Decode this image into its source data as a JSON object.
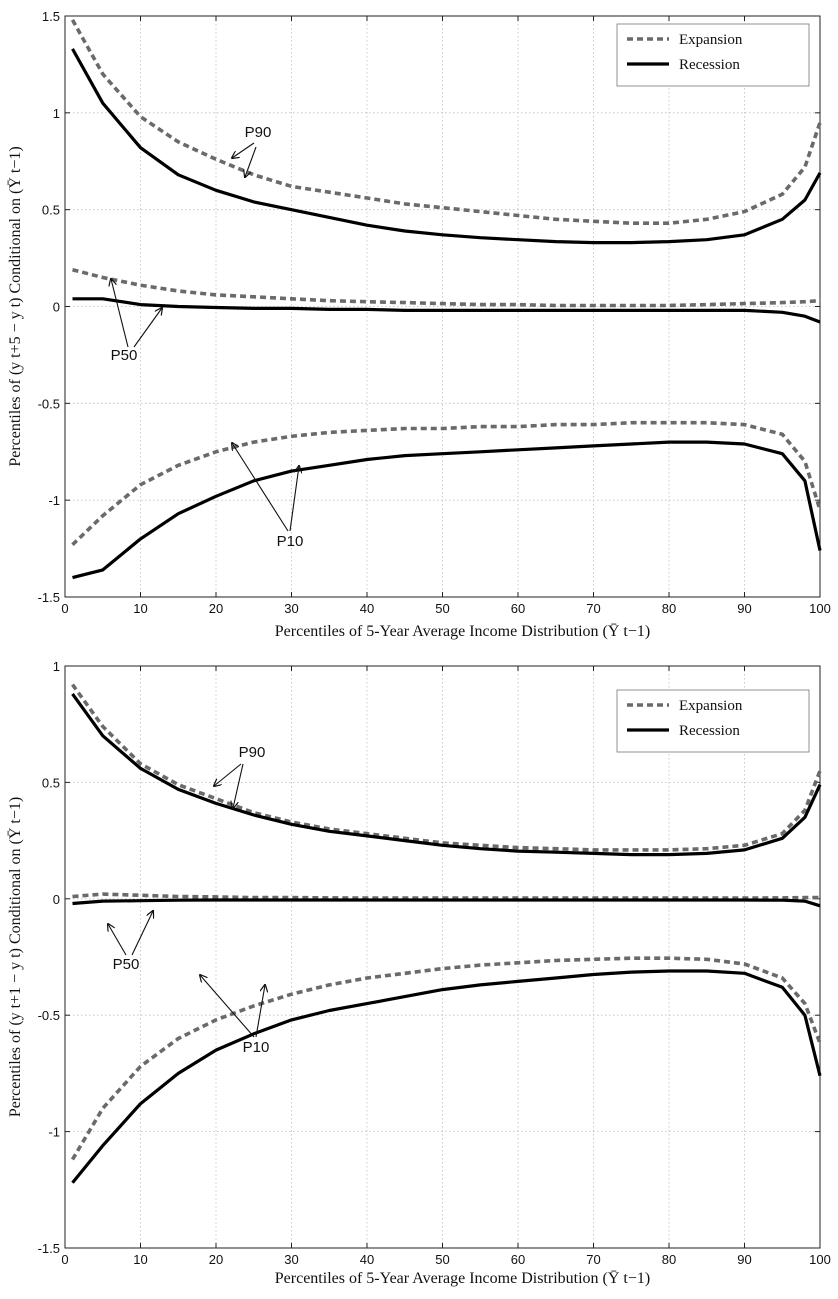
{
  "chart_data": [
    {
      "type": "line",
      "xlabel": "Percentiles of 5-Year Average Income Distribution (Ȳ t−1)",
      "ylabel": "Percentiles of (y t+5 − y t) Conditional on (Ȳ t−1)",
      "xlim": [
        0,
        100
      ],
      "ylim": [
        -1.5,
        1.5
      ],
      "x_ticks": [
        "0",
        "10",
        "20",
        "30",
        "40",
        "50",
        "60",
        "70",
        "80",
        "90",
        "100"
      ],
      "y_ticks": [
        "-1.5",
        "-1",
        "-0.5",
        "0",
        "0.5",
        "1",
        "1.5"
      ],
      "grid": true,
      "legend_position": "top-right",
      "legend": [
        "Expansion",
        "Recession"
      ],
      "x": [
        1,
        5,
        10,
        15,
        20,
        25,
        30,
        35,
        40,
        45,
        50,
        55,
        60,
        65,
        70,
        75,
        80,
        85,
        90,
        95,
        98,
        100
      ],
      "series": [
        {
          "name": "Expansion",
          "percentile": "P90",
          "style": "dashed",
          "values": [
            1.48,
            1.2,
            0.98,
            0.85,
            0.76,
            0.68,
            0.62,
            0.59,
            0.56,
            0.53,
            0.51,
            0.49,
            0.47,
            0.45,
            0.44,
            0.43,
            0.43,
            0.45,
            0.49,
            0.58,
            0.72,
            0.95
          ]
        },
        {
          "name": "Recession",
          "percentile": "P90",
          "style": "solid",
          "values": [
            1.33,
            1.05,
            0.82,
            0.68,
            0.6,
            0.54,
            0.5,
            0.46,
            0.42,
            0.39,
            0.37,
            0.355,
            0.345,
            0.335,
            0.33,
            0.33,
            0.335,
            0.345,
            0.37,
            0.45,
            0.55,
            0.69
          ]
        },
        {
          "name": "Expansion",
          "percentile": "P50",
          "style": "dashed",
          "values": [
            0.19,
            0.15,
            0.11,
            0.08,
            0.06,
            0.05,
            0.04,
            0.03,
            0.025,
            0.02,
            0.015,
            0.01,
            0.01,
            0.005,
            0.005,
            0.005,
            0.005,
            0.01,
            0.015,
            0.02,
            0.025,
            0.03
          ]
        },
        {
          "name": "Recession",
          "percentile": "P50",
          "style": "solid",
          "values": [
            0.04,
            0.04,
            0.01,
            0.0,
            -0.005,
            -0.01,
            -0.01,
            -0.015,
            -0.015,
            -0.02,
            -0.02,
            -0.02,
            -0.02,
            -0.02,
            -0.02,
            -0.02,
            -0.02,
            -0.02,
            -0.02,
            -0.03,
            -0.05,
            -0.08
          ]
        },
        {
          "name": "Expansion",
          "percentile": "P10",
          "style": "dashed",
          "values": [
            -1.23,
            -1.08,
            -0.92,
            -0.82,
            -0.75,
            -0.7,
            -0.67,
            -0.65,
            -0.64,
            -0.63,
            -0.63,
            -0.62,
            -0.62,
            -0.61,
            -0.61,
            -0.6,
            -0.6,
            -0.6,
            -0.61,
            -0.66,
            -0.8,
            -1.05
          ]
        },
        {
          "name": "Recession",
          "percentile": "P10",
          "style": "solid",
          "values": [
            -1.4,
            -1.36,
            -1.2,
            -1.07,
            -0.98,
            -0.9,
            -0.85,
            -0.82,
            -0.79,
            -0.77,
            -0.76,
            -0.75,
            -0.74,
            -0.73,
            -0.72,
            -0.71,
            -0.7,
            -0.7,
            -0.71,
            -0.76,
            -0.9,
            -1.26
          ]
        }
      ],
      "annotations": [
        "P90",
        "P50",
        "P10"
      ]
    },
    {
      "type": "line",
      "xlabel": "Percentiles of 5-Year Average Income Distribution (Ȳ t−1)",
      "ylabel": "Percentiles of (y t+1 − y t) Conditional on (Ȳ t−1)",
      "xlim": [
        0,
        100
      ],
      "ylim": [
        -1.5,
        1
      ],
      "x_ticks": [
        "0",
        "10",
        "20",
        "30",
        "40",
        "50",
        "60",
        "70",
        "80",
        "90",
        "100"
      ],
      "y_ticks": [
        "-1.5",
        "-1",
        "-0.5",
        "0",
        "0.5",
        "1"
      ],
      "grid": true,
      "legend_position": "top-right",
      "legend": [
        "Expansion",
        "Recession"
      ],
      "x": [
        1,
        5,
        10,
        15,
        20,
        25,
        30,
        35,
        40,
        45,
        50,
        55,
        60,
        65,
        70,
        75,
        80,
        85,
        90,
        95,
        98,
        100
      ],
      "series": [
        {
          "name": "Expansion",
          "percentile": "P90",
          "style": "dashed",
          "values": [
            0.92,
            0.74,
            0.58,
            0.49,
            0.43,
            0.37,
            0.33,
            0.3,
            0.28,
            0.26,
            0.24,
            0.23,
            0.22,
            0.215,
            0.21,
            0.21,
            0.21,
            0.215,
            0.23,
            0.28,
            0.38,
            0.55
          ]
        },
        {
          "name": "Recession",
          "percentile": "P90",
          "style": "solid",
          "values": [
            0.88,
            0.7,
            0.56,
            0.47,
            0.41,
            0.36,
            0.32,
            0.29,
            0.27,
            0.25,
            0.23,
            0.215,
            0.205,
            0.2,
            0.195,
            0.19,
            0.19,
            0.195,
            0.21,
            0.26,
            0.35,
            0.49
          ]
        },
        {
          "name": "Expansion",
          "percentile": "P50",
          "style": "dashed",
          "values": [
            0.01,
            0.02,
            0.015,
            0.01,
            0.008,
            0.005,
            0.005,
            0.004,
            0.003,
            0.003,
            0.003,
            0.003,
            0.003,
            0.003,
            0.003,
            0.003,
            0.003,
            0.003,
            0.003,
            0.004,
            0.005,
            0.005
          ]
        },
        {
          "name": "Recession",
          "percentile": "P50",
          "style": "solid",
          "values": [
            -0.02,
            -0.01,
            -0.008,
            -0.006,
            -0.005,
            -0.005,
            -0.005,
            -0.005,
            -0.005,
            -0.005,
            -0.005,
            -0.005,
            -0.005,
            -0.005,
            -0.005,
            -0.005,
            -0.005,
            -0.005,
            -0.005,
            -0.006,
            -0.01,
            -0.03
          ]
        },
        {
          "name": "Expansion",
          "percentile": "P10",
          "style": "dashed",
          "values": [
            -1.12,
            -0.9,
            -0.72,
            -0.6,
            -0.52,
            -0.46,
            -0.41,
            -0.37,
            -0.34,
            -0.32,
            -0.3,
            -0.285,
            -0.275,
            -0.265,
            -0.26,
            -0.255,
            -0.255,
            -0.26,
            -0.28,
            -0.34,
            -0.45,
            -0.62
          ]
        },
        {
          "name": "Recession",
          "percentile": "P10",
          "style": "solid",
          "values": [
            -1.22,
            -1.06,
            -0.88,
            -0.75,
            -0.65,
            -0.58,
            -0.52,
            -0.48,
            -0.45,
            -0.42,
            -0.39,
            -0.37,
            -0.355,
            -0.34,
            -0.325,
            -0.315,
            -0.31,
            -0.31,
            -0.32,
            -0.38,
            -0.5,
            -0.76
          ]
        }
      ],
      "annotations": [
        "P90",
        "P50",
        "P10"
      ]
    }
  ]
}
